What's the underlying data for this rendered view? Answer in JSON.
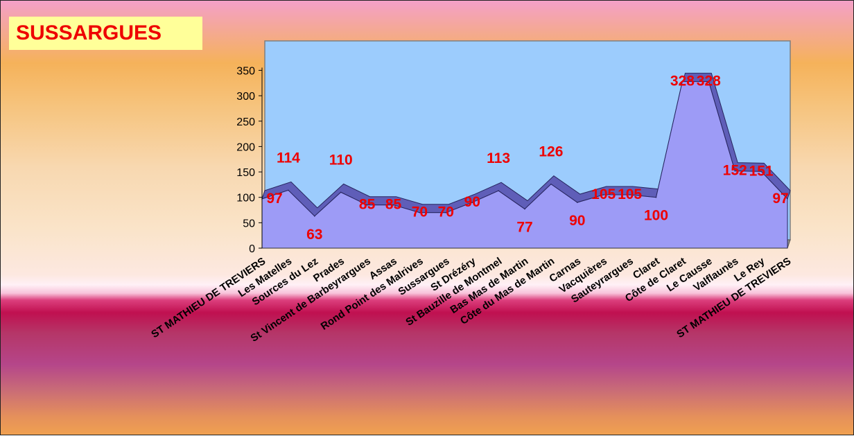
{
  "colors": {
    "plot_area": "#9cccfd",
    "area_fill": "#9d9bf6",
    "area_top": "#5f5eb8",
    "floor": "#8c8c8c",
    "label": "#ee0000",
    "title_bg": "#ffff99"
  },
  "chart_data": {
    "type": "area",
    "title": "SUSSARGUES",
    "xlabel": "",
    "ylabel": "",
    "ylim": [
      0,
      350
    ],
    "yticks": [
      0,
      50,
      100,
      150,
      200,
      250,
      300,
      350
    ],
    "grid": false,
    "legend": "none",
    "categories": [
      "ST MATHIEU DE TREVIERS",
      "Les Matelles",
      "Sources du Lez",
      "Prades",
      "St Vincent de Barbeyrargues",
      "Assas",
      "Rond Point des Malrives",
      "Sussargues",
      "St Drézéry",
      "St Bauzille de Montmel",
      "Bas Mas de Martin",
      "Côte du Mas de Martin",
      "Carnas",
      "Vacquières",
      "Sauteyrargues",
      "Claret",
      "Côte de Claret",
      "Le Causse",
      "Valflaunès",
      "Le Rey",
      "ST MATHIEU DE TREVIERS"
    ],
    "values": [
      97,
      114,
      63,
      110,
      85,
      85,
      70,
      70,
      90,
      113,
      77,
      126,
      90,
      105,
      105,
      100,
      328,
      328,
      152,
      151,
      97
    ],
    "labels": [
      "97",
      "114",
      "63",
      "110",
      "85",
      "85",
      "70",
      "70",
      "90",
      "113",
      "77",
      "126",
      "90",
      "105",
      "105",
      "100",
      "328",
      "328",
      "152",
      "151",
      "97"
    ]
  }
}
